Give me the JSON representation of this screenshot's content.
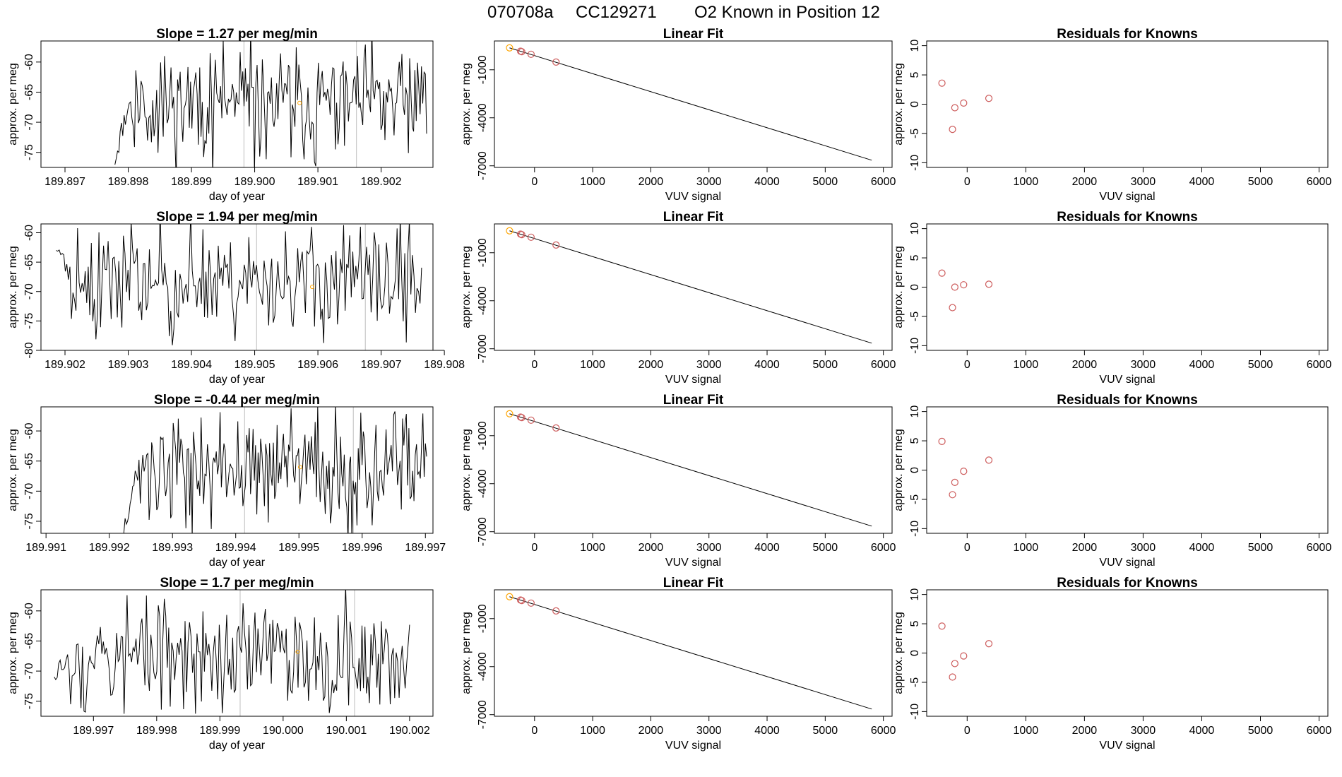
{
  "figure_title": {
    "run": "070708a",
    "tank": "CC129271",
    "desc": "O2 Known in Position  12"
  },
  "colors": {
    "trace": "#000000",
    "vline": "#bebebe",
    "known": "#ffa500",
    "resid": "#cd5c5c"
  },
  "chart_data": [
    {
      "type": "line",
      "row": 0,
      "panel": "time-series",
      "title": "Slope =  1.27  per meg/min",
      "xlabel": "day of year",
      "ylabel": "approx. per meg",
      "xlim": [
        189.89662,
        189.90282
      ],
      "ylim": [
        -77.5,
        -56.5
      ],
      "xticks": [
        189.897,
        189.898,
        189.899,
        189.9,
        189.901,
        189.902
      ],
      "xtick_labels": [
        "189.897",
        "189.898",
        "189.899",
        "189.900",
        "189.901",
        "189.902"
      ],
      "yticks": [
        -75,
        -70,
        -65,
        -60
      ],
      "ytick_labels": [
        "-75",
        "-70",
        "-65",
        "-60"
      ],
      "trace": {
        "x_start": 189.89779,
        "x_end": 189.90272,
        "seed": 11,
        "start_value": -76,
        "base": -67
      },
      "vlines": [
        189.89983,
        189.90161
      ],
      "known_point": {
        "x": 189.90071,
        "y": -66.8
      }
    },
    {
      "type": "line",
      "row": 0,
      "panel": "linear-fit",
      "title": "Linear Fit",
      "xlabel": "VUV signal",
      "ylabel": "approx. per meg",
      "xlim": [
        -690,
        6150
      ],
      "ylim": [
        -7100,
        800
      ],
      "xticks": [
        0,
        1000,
        2000,
        3000,
        4000,
        5000,
        6000
      ],
      "xtick_labels": [
        "0",
        "1000",
        "2000",
        "3000",
        "4000",
        "5000",
        "6000"
      ],
      "yticks": [
        -7000,
        -4000,
        -1000
      ],
      "ytick_labels": [
        "-7000",
        "-4000",
        "-1000"
      ],
      "fit_line": {
        "x": [
          -430,
          5800
        ],
        "y": [
          370,
          -6650
        ]
      },
      "points": [
        {
          "x": -430,
          "y": 370,
          "color": "known"
        },
        {
          "x": -240,
          "y": 160
        },
        {
          "x": -220,
          "y": 130
        },
        {
          "x": -60,
          "y": -30
        },
        {
          "x": 370,
          "y": -520
        }
      ]
    },
    {
      "type": "scatter",
      "row": 0,
      "panel": "residuals",
      "title": "Residuals for Knowns",
      "xlabel": "VUV signal",
      "ylabel": "approx. per meg",
      "xlim": [
        -690,
        6150
      ],
      "ylim": [
        -10.8,
        10.8
      ],
      "xticks": [
        0,
        1000,
        2000,
        3000,
        4000,
        5000,
        6000
      ],
      "xtick_labels": [
        "0",
        "1000",
        "2000",
        "3000",
        "4000",
        "5000",
        "6000"
      ],
      "yticks": [
        -10,
        -5,
        0,
        5,
        10
      ],
      "ytick_labels": [
        "-10",
        "-5",
        "0",
        "5",
        "10"
      ],
      "points": [
        {
          "x": -430,
          "y": 3.6
        },
        {
          "x": -250,
          "y": -4.3
        },
        {
          "x": -210,
          "y": -0.6
        },
        {
          "x": -60,
          "y": 0.2
        },
        {
          "x": 370,
          "y": 1.0
        }
      ]
    },
    {
      "type": "line",
      "row": 1,
      "panel": "time-series",
      "title": "Slope =  1.94  per meg/min",
      "xlabel": "day of year",
      "ylabel": "approx. per meg",
      "xlim": [
        189.90162,
        189.90782
      ],
      "ylim": [
        -80,
        -58.5
      ],
      "xticks": [
        189.902,
        189.903,
        189.904,
        189.905,
        189.906,
        189.907,
        189.908
      ],
      "xtick_labels": [
        "189.902",
        "189.903",
        "189.904",
        "189.905",
        "189.906",
        "189.907",
        "189.908"
      ],
      "yticks": [
        -80,
        -75,
        -70,
        -65,
        -60
      ],
      "ytick_labels": [
        "-80",
        "-75",
        "-70",
        "-65",
        "-60"
      ],
      "trace": {
        "x_start": 189.90186,
        "x_end": 189.90764,
        "seed": 23,
        "start_value": -62,
        "base": -68
      },
      "vlines": [
        189.90503,
        189.90675
      ],
      "known_point": {
        "x": 189.90591,
        "y": -69.2
      }
    },
    {
      "type": "line",
      "row": 1,
      "panel": "linear-fit",
      "title": "Linear Fit",
      "xlabel": "VUV signal",
      "ylabel": "approx. per meg",
      "xlim": [
        -690,
        6150
      ],
      "ylim": [
        -7100,
        800
      ],
      "xticks": [
        0,
        1000,
        2000,
        3000,
        4000,
        5000,
        6000
      ],
      "xtick_labels": [
        "0",
        "1000",
        "2000",
        "3000",
        "4000",
        "5000",
        "6000"
      ],
      "yticks": [
        -7000,
        -4000,
        -1000
      ],
      "ytick_labels": [
        "-7000",
        "-4000",
        "-1000"
      ],
      "fit_line": {
        "x": [
          -430,
          5800
        ],
        "y": [
          370,
          -6650
        ]
      },
      "points": [
        {
          "x": -430,
          "y": 370,
          "color": "known"
        },
        {
          "x": -240,
          "y": 160
        },
        {
          "x": -220,
          "y": 130
        },
        {
          "x": -60,
          "y": -30
        },
        {
          "x": 370,
          "y": -520
        }
      ]
    },
    {
      "type": "scatter",
      "row": 1,
      "panel": "residuals",
      "title": "Residuals for Knowns",
      "xlabel": "VUV signal",
      "ylabel": "approx. per meg",
      "xlim": [
        -690,
        6150
      ],
      "ylim": [
        -10.8,
        10.8
      ],
      "xticks": [
        0,
        1000,
        2000,
        3000,
        4000,
        5000,
        6000
      ],
      "xtick_labels": [
        "0",
        "1000",
        "2000",
        "3000",
        "4000",
        "5000",
        "6000"
      ],
      "yticks": [
        -10,
        -5,
        0,
        5,
        10
      ],
      "ytick_labels": [
        "-10",
        "-5",
        "0",
        "5",
        "10"
      ],
      "points": [
        {
          "x": -430,
          "y": 2.4
        },
        {
          "x": -250,
          "y": -3.5
        },
        {
          "x": -210,
          "y": 0.0
        },
        {
          "x": -60,
          "y": 0.4
        },
        {
          "x": 370,
          "y": 0.5
        }
      ]
    },
    {
      "type": "line",
      "row": 2,
      "panel": "time-series",
      "title": "Slope =  -0.44  per meg/min",
      "xlabel": "day of year",
      "ylabel": "approx. per meg",
      "xlim": [
        189.99092,
        189.99712
      ],
      "ylim": [
        -77,
        -56
      ],
      "xticks": [
        189.991,
        189.992,
        189.993,
        189.994,
        189.995,
        189.996,
        189.997
      ],
      "xtick_labels": [
        "189.991",
        "189.992",
        "189.993",
        "189.994",
        "189.995",
        "189.996",
        "189.997"
      ],
      "yticks": [
        -75,
        -70,
        -65,
        -60
      ],
      "ytick_labels": [
        "-75",
        "-70",
        "-65",
        "-60"
      ],
      "trace": {
        "x_start": 189.99223,
        "x_end": 189.99702,
        "seed": 37,
        "start_value": -76,
        "base": -66.5
      },
      "vlines": [
        189.99414,
        189.99586
      ],
      "known_point": {
        "x": 189.99502,
        "y": -66.0
      }
    },
    {
      "type": "line",
      "row": 2,
      "panel": "linear-fit",
      "title": "Linear Fit",
      "xlabel": "VUV signal",
      "ylabel": "approx. per meg",
      "xlim": [
        -690,
        6150
      ],
      "ylim": [
        -7100,
        800
      ],
      "xticks": [
        0,
        1000,
        2000,
        3000,
        4000,
        5000,
        6000
      ],
      "xtick_labels": [
        "0",
        "1000",
        "2000",
        "3000",
        "4000",
        "5000",
        "6000"
      ],
      "yticks": [
        -7000,
        -4000,
        -1000
      ],
      "ytick_labels": [
        "-7000",
        "-4000",
        "-1000"
      ],
      "fit_line": {
        "x": [
          -430,
          5800
        ],
        "y": [
          370,
          -6650
        ]
      },
      "points": [
        {
          "x": -430,
          "y": 370,
          "color": "known"
        },
        {
          "x": -240,
          "y": 160
        },
        {
          "x": -220,
          "y": 130
        },
        {
          "x": -60,
          "y": -30
        },
        {
          "x": 370,
          "y": -520
        }
      ]
    },
    {
      "type": "scatter",
      "row": 2,
      "panel": "residuals",
      "title": "Residuals for Knowns",
      "xlabel": "VUV signal",
      "ylabel": "approx. per meg",
      "xlim": [
        -690,
        6150
      ],
      "ylim": [
        -10.8,
        10.8
      ],
      "xticks": [
        0,
        1000,
        2000,
        3000,
        4000,
        5000,
        6000
      ],
      "xtick_labels": [
        "0",
        "1000",
        "2000",
        "3000",
        "4000",
        "5000",
        "6000"
      ],
      "yticks": [
        -10,
        -5,
        0,
        5,
        10
      ],
      "ytick_labels": [
        "-10",
        "-5",
        "0",
        "5",
        "10"
      ],
      "points": [
        {
          "x": -430,
          "y": 4.9
        },
        {
          "x": -250,
          "y": -4.2
        },
        {
          "x": -210,
          "y": -2.1
        },
        {
          "x": -60,
          "y": -0.2
        },
        {
          "x": 370,
          "y": 1.7
        }
      ]
    },
    {
      "type": "line",
      "row": 3,
      "panel": "time-series",
      "title": "Slope =  1.7  per meg/min",
      "xlabel": "day of year",
      "ylabel": "approx. per meg",
      "xlim": [
        189.99617,
        190.00237
      ],
      "ylim": [
        -77.5,
        -56.5
      ],
      "xticks": [
        189.997,
        189.998,
        189.999,
        190.0,
        190.001,
        190.002
      ],
      "xtick_labels": [
        "189.997",
        "189.998",
        "189.999",
        "190.000",
        "190.001",
        "190.002"
      ],
      "yticks": [
        -75,
        -70,
        -65,
        -60
      ],
      "ytick_labels": [
        "-75",
        "-70",
        "-65",
        "-60"
      ],
      "trace": {
        "x_start": 189.99638,
        "x_end": 190.002,
        "seed": 53,
        "start_value": -70,
        "base": -67.5
      },
      "vlines": [
        189.99932,
        190.00113
      ],
      "known_point": {
        "x": 190.00023,
        "y": -66.8
      }
    },
    {
      "type": "line",
      "row": 3,
      "panel": "linear-fit",
      "title": "Linear Fit",
      "xlabel": "VUV signal",
      "ylabel": "approx. per meg",
      "xlim": [
        -690,
        6150
      ],
      "ylim": [
        -7100,
        800
      ],
      "xticks": [
        0,
        1000,
        2000,
        3000,
        4000,
        5000,
        6000
      ],
      "xtick_labels": [
        "0",
        "1000",
        "2000",
        "3000",
        "4000",
        "5000",
        "6000"
      ],
      "yticks": [
        -7000,
        -4000,
        -1000
      ],
      "ytick_labels": [
        "-7000",
        "-4000",
        "-1000"
      ],
      "fit_line": {
        "x": [
          -430,
          5800
        ],
        "y": [
          370,
          -6650
        ]
      },
      "points": [
        {
          "x": -430,
          "y": 370,
          "color": "known"
        },
        {
          "x": -240,
          "y": 160
        },
        {
          "x": -220,
          "y": 130
        },
        {
          "x": -60,
          "y": -30
        },
        {
          "x": 370,
          "y": -520
        }
      ]
    },
    {
      "type": "scatter",
      "row": 3,
      "panel": "residuals",
      "title": "Residuals for Knowns",
      "xlabel": "VUV signal",
      "ylabel": "approx. per meg",
      "xlim": [
        -690,
        6150
      ],
      "ylim": [
        -10.8,
        10.8
      ],
      "xticks": [
        0,
        1000,
        2000,
        3000,
        4000,
        5000,
        6000
      ],
      "xtick_labels": [
        "0",
        "1000",
        "2000",
        "3000",
        "4000",
        "5000",
        "6000"
      ],
      "yticks": [
        -10,
        -5,
        0,
        5,
        10
      ],
      "ytick_labels": [
        "-10",
        "-5",
        "0",
        "5",
        "10"
      ],
      "points": [
        {
          "x": -430,
          "y": 4.6
        },
        {
          "x": -250,
          "y": -4.1
        },
        {
          "x": -210,
          "y": -1.8
        },
        {
          "x": -60,
          "y": -0.5
        },
        {
          "x": 370,
          "y": 1.6
        }
      ]
    }
  ]
}
